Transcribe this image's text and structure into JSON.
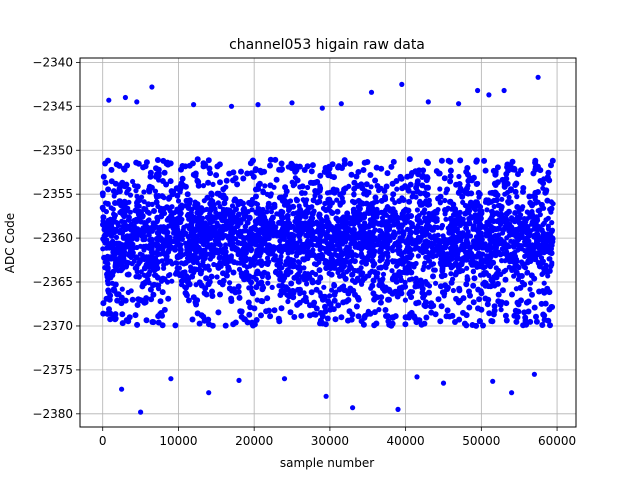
{
  "chart_data": {
    "type": "scatter",
    "title": "channel053 higain raw data",
    "xlabel": "sample number",
    "ylabel": "ADC Code",
    "xlim": [
      -3000,
      62500
    ],
    "ylim": [
      -2381.5,
      -2339.5
    ],
    "x_ticks": [
      0,
      10000,
      20000,
      30000,
      40000,
      50000,
      60000
    ],
    "y_ticks": [
      -2380,
      -2375,
      -2370,
      -2365,
      -2360,
      -2355,
      -2350,
      -2345,
      -2340
    ],
    "x_tick_labels": [
      "0",
      "10000",
      "20000",
      "30000",
      "40000",
      "50000",
      "60000"
    ],
    "y_tick_labels": [
      "−2380",
      "−2375",
      "−2370",
      "−2365",
      "−2360",
      "−2355",
      "−2350",
      "−2345",
      "−2340"
    ],
    "grid": true,
    "marker_color": "#0000ff",
    "series": [
      {
        "x_range": [
          0,
          59500
        ],
        "center": -2360,
        "dense_band": [
          -2370,
          -2351
        ],
        "outliers": [
          {
            "x": 5000,
            "y": -2379.8
          },
          {
            "x": 29500,
            "y": -2378.0
          },
          {
            "x": 33000,
            "y": -2379.3
          },
          {
            "x": 39000,
            "y": -2379.5
          },
          {
            "x": 14000,
            "y": -2377.6
          },
          {
            "x": 54000,
            "y": -2377.6
          },
          {
            "x": 2500,
            "y": -2377.2
          },
          {
            "x": 57500,
            "y": -2341.7
          },
          {
            "x": 39500,
            "y": -2342.5
          },
          {
            "x": 6500,
            "y": -2342.8
          },
          {
            "x": 49500,
            "y": -2343.2
          },
          {
            "x": 35500,
            "y": -2343.4
          },
          {
            "x": 53000,
            "y": -2343.2
          },
          {
            "x": 800,
            "y": -2344.3
          },
          {
            "x": 3000,
            "y": -2344.0
          },
          {
            "x": 4500,
            "y": -2344.5
          },
          {
            "x": 12000,
            "y": -2344.8
          },
          {
            "x": 17000,
            "y": -2345.0
          },
          {
            "x": 20500,
            "y": -2344.8
          },
          {
            "x": 25000,
            "y": -2344.6
          },
          {
            "x": 29000,
            "y": -2345.2
          },
          {
            "x": 31500,
            "y": -2344.7
          },
          {
            "x": 43000,
            "y": -2344.5
          },
          {
            "x": 47000,
            "y": -2344.7
          },
          {
            "x": 51000,
            "y": -2343.7
          },
          {
            "x": 45000,
            "y": -2376.5
          },
          {
            "x": 24000,
            "y": -2376.0
          },
          {
            "x": 18000,
            "y": -2376.2
          },
          {
            "x": 9000,
            "y": -2376.0
          },
          {
            "x": 51500,
            "y": -2376.3
          },
          {
            "x": 57000,
            "y": -2375.5
          },
          {
            "x": 41500,
            "y": -2375.8
          }
        ]
      }
    ]
  }
}
